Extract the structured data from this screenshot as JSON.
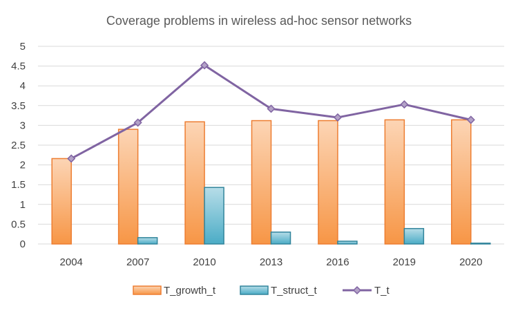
{
  "chart_data": {
    "type": "bar",
    "title": "Coverage problems in wireless ad-hoc sensor networks",
    "xlabel": "",
    "ylabel": "",
    "categories": [
      "2004",
      "2007",
      "2010",
      "2013",
      "2016",
      "2019",
      "2020"
    ],
    "ylim": [
      0,
      5
    ],
    "yticks": [
      "0",
      "0.5",
      "1",
      "1.5",
      "2",
      "2.5",
      "3",
      "3.5",
      "4",
      "4.5",
      "5"
    ],
    "grid": true,
    "legend_position": "bottom",
    "series": [
      {
        "name": "T_growth_t",
        "type": "bar",
        "values": [
          2.16,
          2.9,
          3.09,
          3.12,
          3.12,
          3.14,
          3.14
        ],
        "fill_top": "#fcd5b5",
        "fill_bottom": "#f79646",
        "stroke": "#ed7d31"
      },
      {
        "name": "T_struct_t",
        "type": "bar",
        "values": [
          0,
          0.16,
          1.43,
          0.3,
          0.07,
          0.39,
          0.02
        ],
        "fill_top": "#b7dde8",
        "fill_bottom": "#4bacc6",
        "stroke": "#31849b"
      },
      {
        "name": "T_t",
        "type": "line",
        "values": [
          2.16,
          3.07,
          4.52,
          3.42,
          3.2,
          3.53,
          3.14
        ],
        "color": "#8064a2",
        "marker": "diamond",
        "marker_fill": "#b3a2c7"
      }
    ]
  }
}
